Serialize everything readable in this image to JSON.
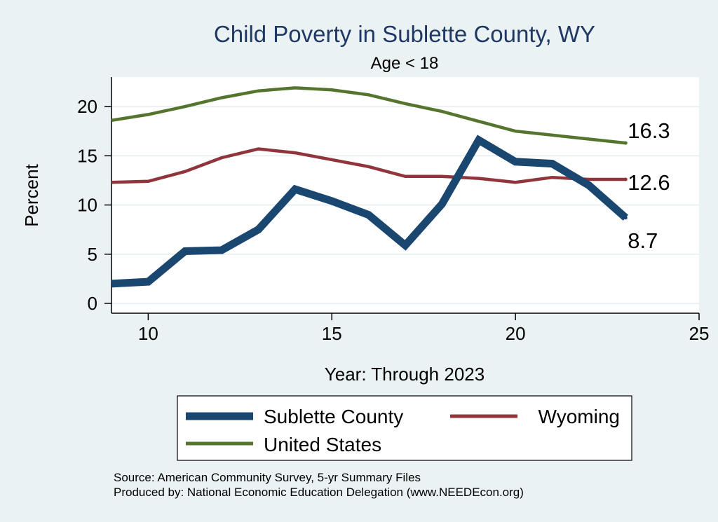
{
  "chart_data": {
    "type": "line",
    "title": "Child Poverty in Sublette County, WY",
    "subtitle": "Age < 18",
    "xlabel": "Year: Through 2023",
    "ylabel": "Percent",
    "xlim": [
      9,
      25
    ],
    "ylim": [
      -1,
      23
    ],
    "xticks": [
      10,
      15,
      20,
      25
    ],
    "yticks": [
      0,
      5,
      10,
      15,
      20
    ],
    "grid": true,
    "x": [
      9,
      10,
      11,
      12,
      13,
      14,
      15,
      16,
      17,
      18,
      19,
      20,
      21,
      22,
      23
    ],
    "series": [
      {
        "name": "Sublette County",
        "color": "#1a476f",
        "values": [
          2.0,
          2.2,
          5.3,
          5.4,
          7.5,
          11.6,
          10.4,
          9.0,
          5.9,
          10.1,
          16.6,
          14.4,
          14.2,
          12.0,
          8.7
        ],
        "end_label": "8.7"
      },
      {
        "name": "Wyoming",
        "color": "#90353b",
        "values": [
          12.3,
          12.4,
          13.4,
          14.8,
          15.7,
          15.3,
          14.6,
          13.9,
          12.9,
          12.9,
          12.7,
          12.3,
          12.8,
          12.6,
          12.6
        ],
        "end_label": "12.6"
      },
      {
        "name": "United States",
        "color": "#55752f",
        "values": [
          18.6,
          19.2,
          20.0,
          20.9,
          21.6,
          21.9,
          21.7,
          21.2,
          20.3,
          19.5,
          18.5,
          17.5,
          17.1,
          16.7,
          16.3
        ],
        "end_label": "16.3"
      }
    ],
    "legend_position": "bottom",
    "source_lines": [
      "Source: American Community Survey, 5-yr Summary Files",
      "Produced by: National Economic Education Delegation (www.NEEDEcon.org)"
    ]
  }
}
